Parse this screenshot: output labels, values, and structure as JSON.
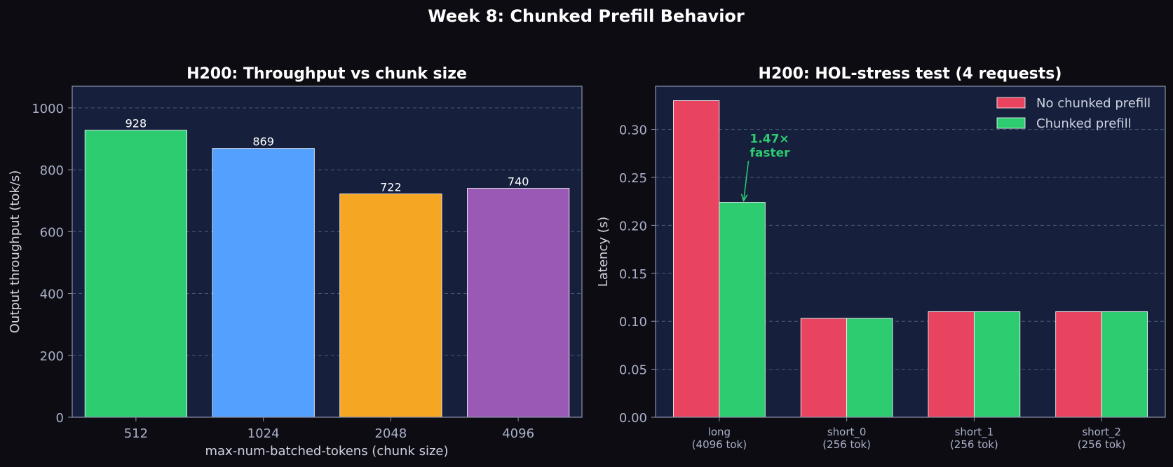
{
  "figure": {
    "suptitle": "Week 8: Chunked Prefill Behavior",
    "background": "#0e0c13",
    "panel_background": "#16203d",
    "text_color": "#ffffff",
    "label_color": "#d0d4e0",
    "tick_color": "#a8b0c8"
  },
  "chart_data": [
    {
      "type": "bar",
      "title": "H200: Throughput vs chunk size",
      "xlabel": "max-num-batched-tokens (chunk size)",
      "ylabel": "Output throughput (tok/s)",
      "categories": [
        "512",
        "1024",
        "2048",
        "4096"
      ],
      "values": [
        928,
        869,
        722,
        740
      ],
      "value_labels": [
        "928",
        "869",
        "722",
        "740"
      ],
      "colors": [
        "#2ecc71",
        "#54a0ff",
        "#f5a623",
        "#9b59b6"
      ],
      "ylim": [
        0,
        1070
      ],
      "yticks": [
        0,
        200,
        400,
        600,
        800,
        1000
      ],
      "ytick_labels": [
        "0",
        "200",
        "400",
        "600",
        "800",
        "1000"
      ],
      "grid": true
    },
    {
      "type": "bar",
      "title": "H200: HOL-stress test (4 requests)",
      "xlabel": "",
      "ylabel": "Latency (s)",
      "categories": [
        [
          "long",
          "(4096 tok)"
        ],
        [
          "short_0",
          "(256 tok)"
        ],
        [
          "short_1",
          "(256 tok)"
        ],
        [
          "short_2",
          "(256 tok)"
        ]
      ],
      "series": [
        {
          "name": "No chunked prefill",
          "color": "#e8435f",
          "values": [
            0.33,
            0.103,
            0.11,
            0.11
          ]
        },
        {
          "name": "Chunked prefill",
          "color": "#2ecc71",
          "values": [
            0.224,
            0.103,
            0.11,
            0.11
          ]
        }
      ],
      "ylim": [
        0,
        0.345
      ],
      "yticks": [
        0,
        0.05,
        0.1,
        0.15,
        0.2,
        0.25,
        0.3
      ],
      "ytick_labels": [
        "0.00",
        "0.05",
        "0.10",
        "0.15",
        "0.20",
        "0.25",
        "0.30"
      ],
      "legend": "top-right",
      "grid": true,
      "annotation": {
        "lines": [
          "1.47×",
          "faster"
        ],
        "color": "#2ecc71",
        "target_category": 0,
        "target_series": 1,
        "text_x": 0.74,
        "text_y": 0.27
      }
    }
  ]
}
